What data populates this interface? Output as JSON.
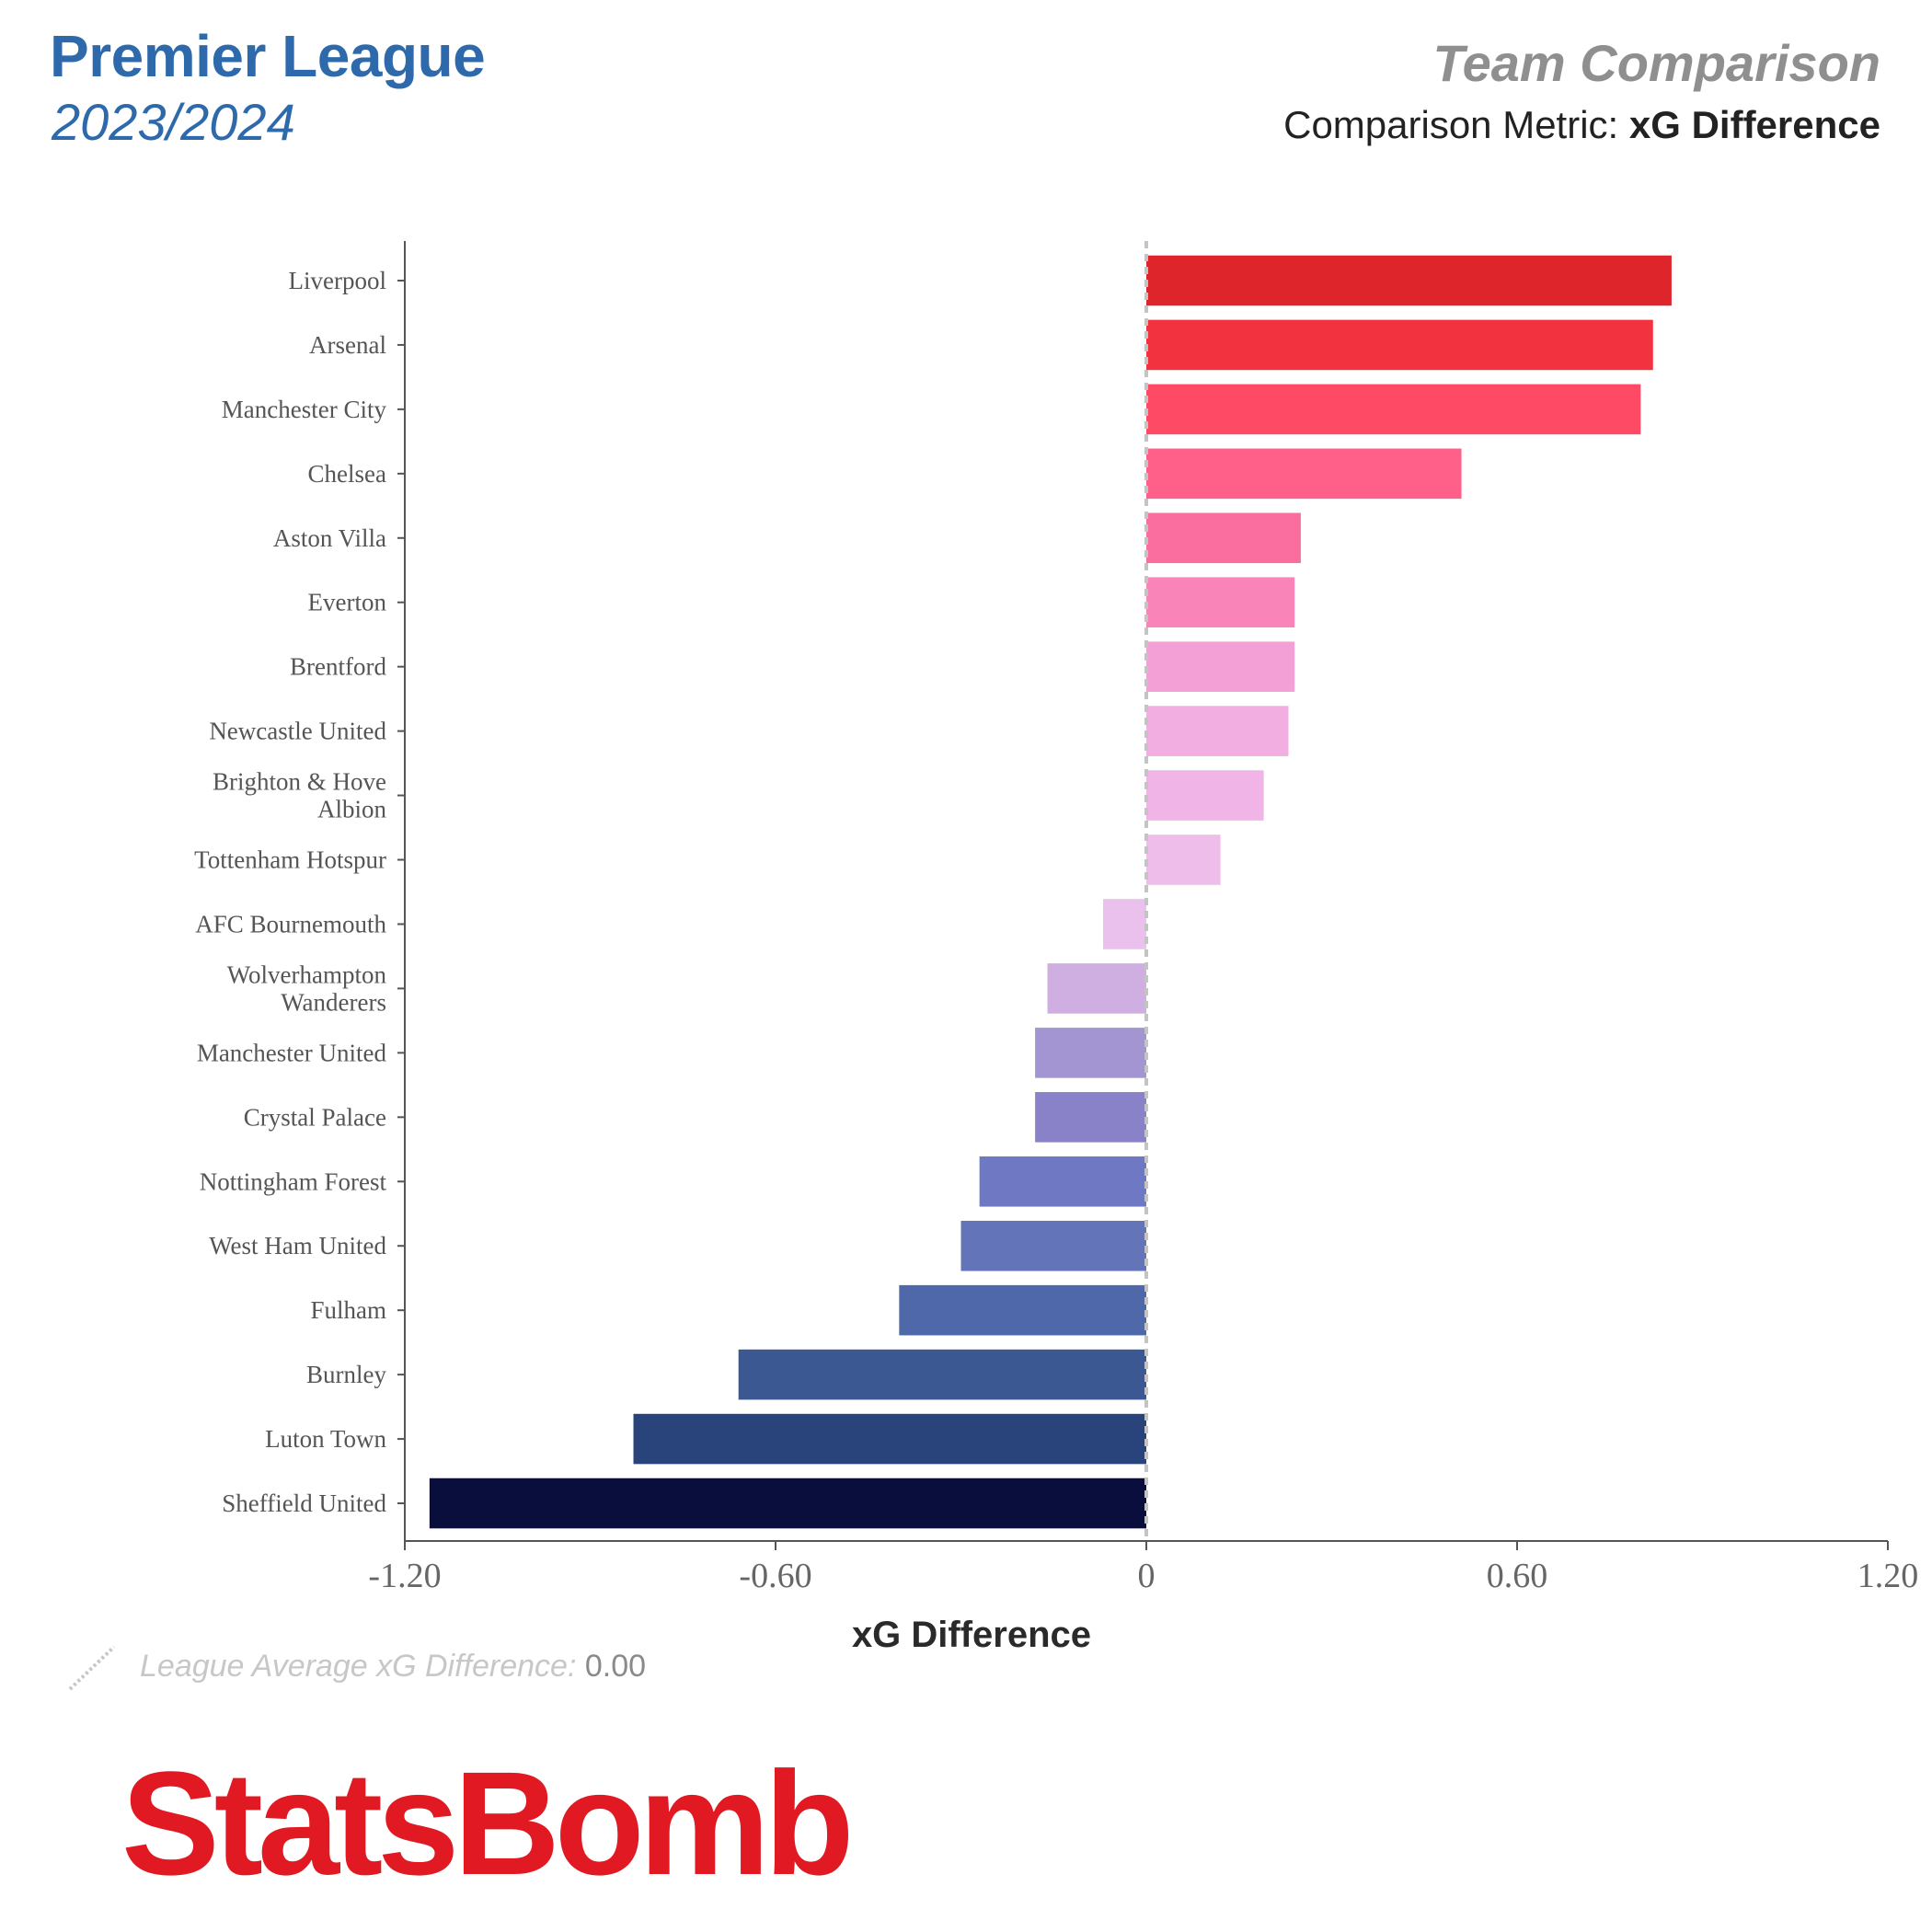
{
  "header": {
    "league": "Premier League",
    "season": "2023/2024",
    "comparison_title": "Team Comparison",
    "metric_prefix": "Comparison Metric:",
    "metric_name": "xG Difference"
  },
  "chart_data": {
    "type": "bar",
    "orientation": "horizontal",
    "title": "Team Comparison",
    "xlabel": "xG Difference",
    "ylabel": "",
    "xlim": [
      -1.2,
      1.2
    ],
    "xticks": [
      -1.2,
      -0.6,
      0,
      0.6,
      1.2
    ],
    "xtick_labels": [
      "-1.20",
      "-0.60",
      "0",
      "0.60",
      "1.20"
    ],
    "grid": false,
    "reference_line": {
      "value": 0.0,
      "style": "dashed",
      "label": "League Average xG Difference"
    },
    "categories": [
      [
        "Liverpool"
      ],
      [
        "Arsenal"
      ],
      [
        "Manchester City"
      ],
      [
        "Chelsea"
      ],
      [
        "Aston Villa"
      ],
      [
        "Everton"
      ],
      [
        "Brentford"
      ],
      [
        "Newcastle United"
      ],
      [
        "Brighton & Hove",
        "Albion"
      ],
      [
        "Tottenham Hotspur"
      ],
      [
        "AFC Bournemouth"
      ],
      [
        "Wolverhampton",
        "Wanderers"
      ],
      [
        "Manchester United"
      ],
      [
        "Crystal Palace"
      ],
      [
        "Nottingham Forest"
      ],
      [
        "West Ham United"
      ],
      [
        "Fulham"
      ],
      [
        "Burnley"
      ],
      [
        "Luton Town"
      ],
      [
        "Sheffield United"
      ]
    ],
    "values": [
      0.85,
      0.82,
      0.8,
      0.51,
      0.25,
      0.24,
      0.24,
      0.23,
      0.19,
      0.12,
      -0.07,
      -0.16,
      -0.18,
      -0.18,
      -0.27,
      -0.3,
      -0.4,
      -0.66,
      -0.83,
      -1.16
    ],
    "colors": [
      "#de252c",
      "#f2323f",
      "#ff4a66",
      "#ff6089",
      "#fa6e9f",
      "#f884b8",
      "#f2a0d5",
      "#f2ade1",
      "#f0b5e6",
      "#efbde9",
      "#eac0ec",
      "#cfaee2",
      "#a394d2",
      "#8a82c9",
      "#6f79c3",
      "#6474b8",
      "#4f68a9",
      "#3b5892",
      "#28447b",
      "#0a0e3c"
    ]
  },
  "footer": {
    "avg_label": "League Average xG Difference:",
    "avg_value": "0.00",
    "logo_text": "StatsBomb"
  }
}
